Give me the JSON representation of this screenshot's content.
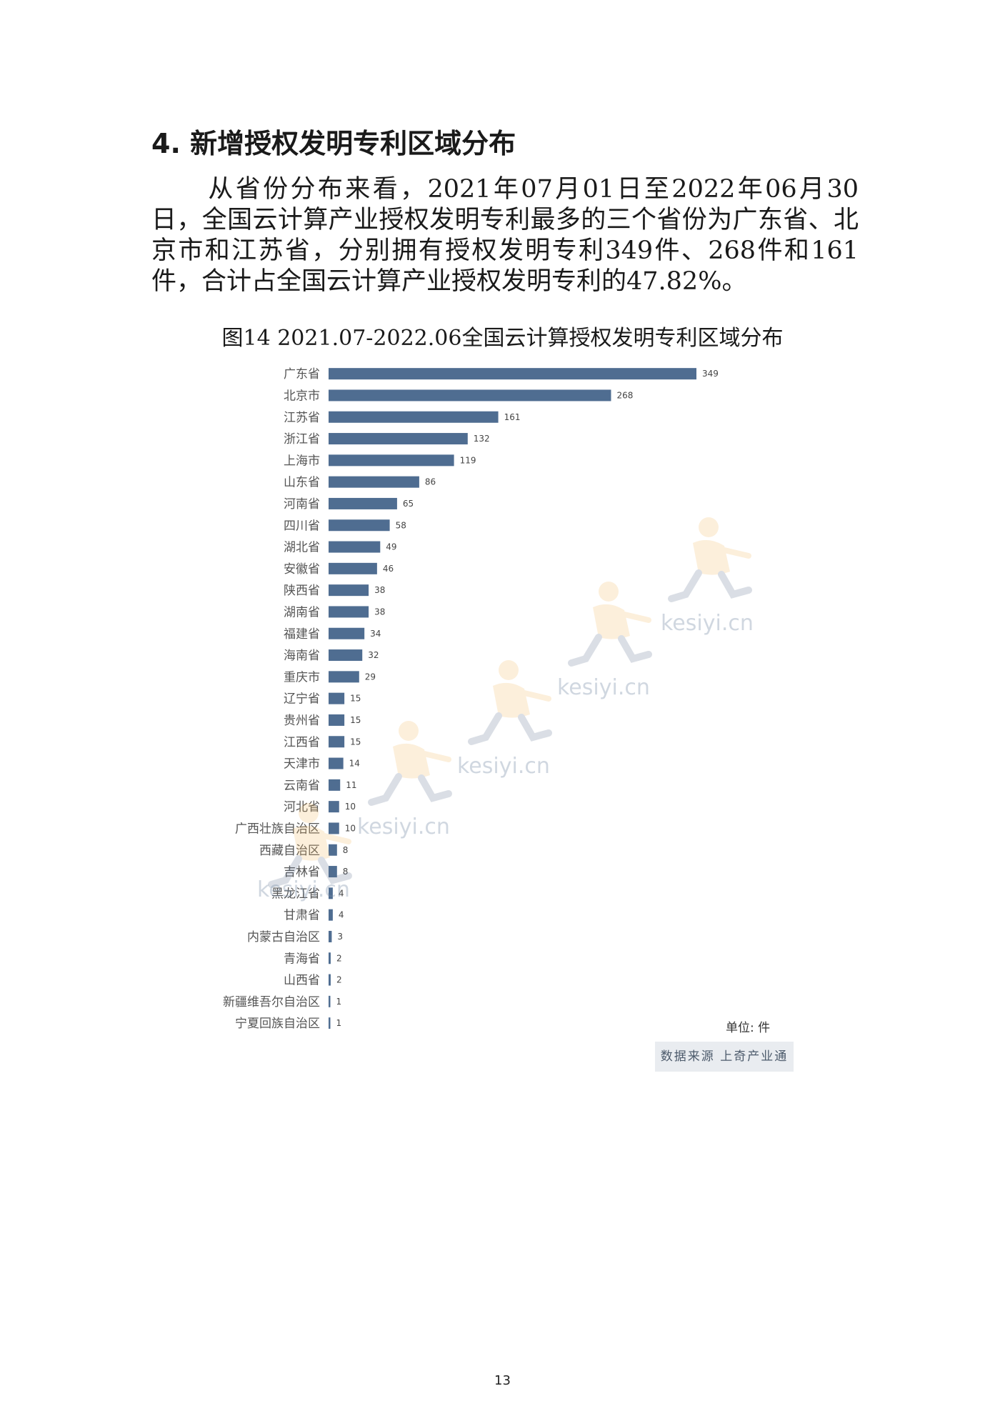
{
  "heading": "4. 新增授权发明专利区域分布",
  "paragraph": "从省份分布来看，2021年07月01日至2022年06月30日，全国云计算产业授权发明专利最多的三个省份为广东省、北京市和江苏省，分别拥有授权发明专利349件、268件和161件，合计占全国云计算产业授权发明专利的47.82%。",
  "figure_title": "图14 2021.07-2022.06全国云计算授权发明专利区域分布",
  "unit_label": "单位: 件",
  "source_label": "数据来源 上奇产业通",
  "page_number": "13",
  "watermark_text": "kesiyi.cn",
  "colors": {
    "bar": "#4f6d91",
    "watermark_figure": "#f4b860",
    "watermark_text": "#7a8fa8"
  },
  "chart_data": {
    "type": "bar",
    "orientation": "horizontal",
    "categories": [
      "广东省",
      "北京市",
      "江苏省",
      "浙江省",
      "上海市",
      "山东省",
      "河南省",
      "四川省",
      "湖北省",
      "安徽省",
      "陕西省",
      "湖南省",
      "福建省",
      "海南省",
      "重庆市",
      "辽宁省",
      "贵州省",
      "江西省",
      "天津市",
      "云南省",
      "河北省",
      "广西壮族自治区",
      "西藏自治区",
      "吉林省",
      "黑龙江省",
      "甘肃省",
      "内蒙古自治区",
      "青海省",
      "山西省",
      "新疆维吾尔自治区",
      "宁夏回族自治区"
    ],
    "values": [
      349,
      268,
      161,
      132,
      119,
      86,
      65,
      58,
      49,
      46,
      38,
      38,
      34,
      32,
      29,
      15,
      15,
      15,
      14,
      11,
      10,
      10,
      8,
      8,
      4,
      4,
      3,
      2,
      2,
      1,
      1
    ],
    "xlim": [
      0,
      349
    ],
    "grid": false,
    "data_labels": true
  }
}
